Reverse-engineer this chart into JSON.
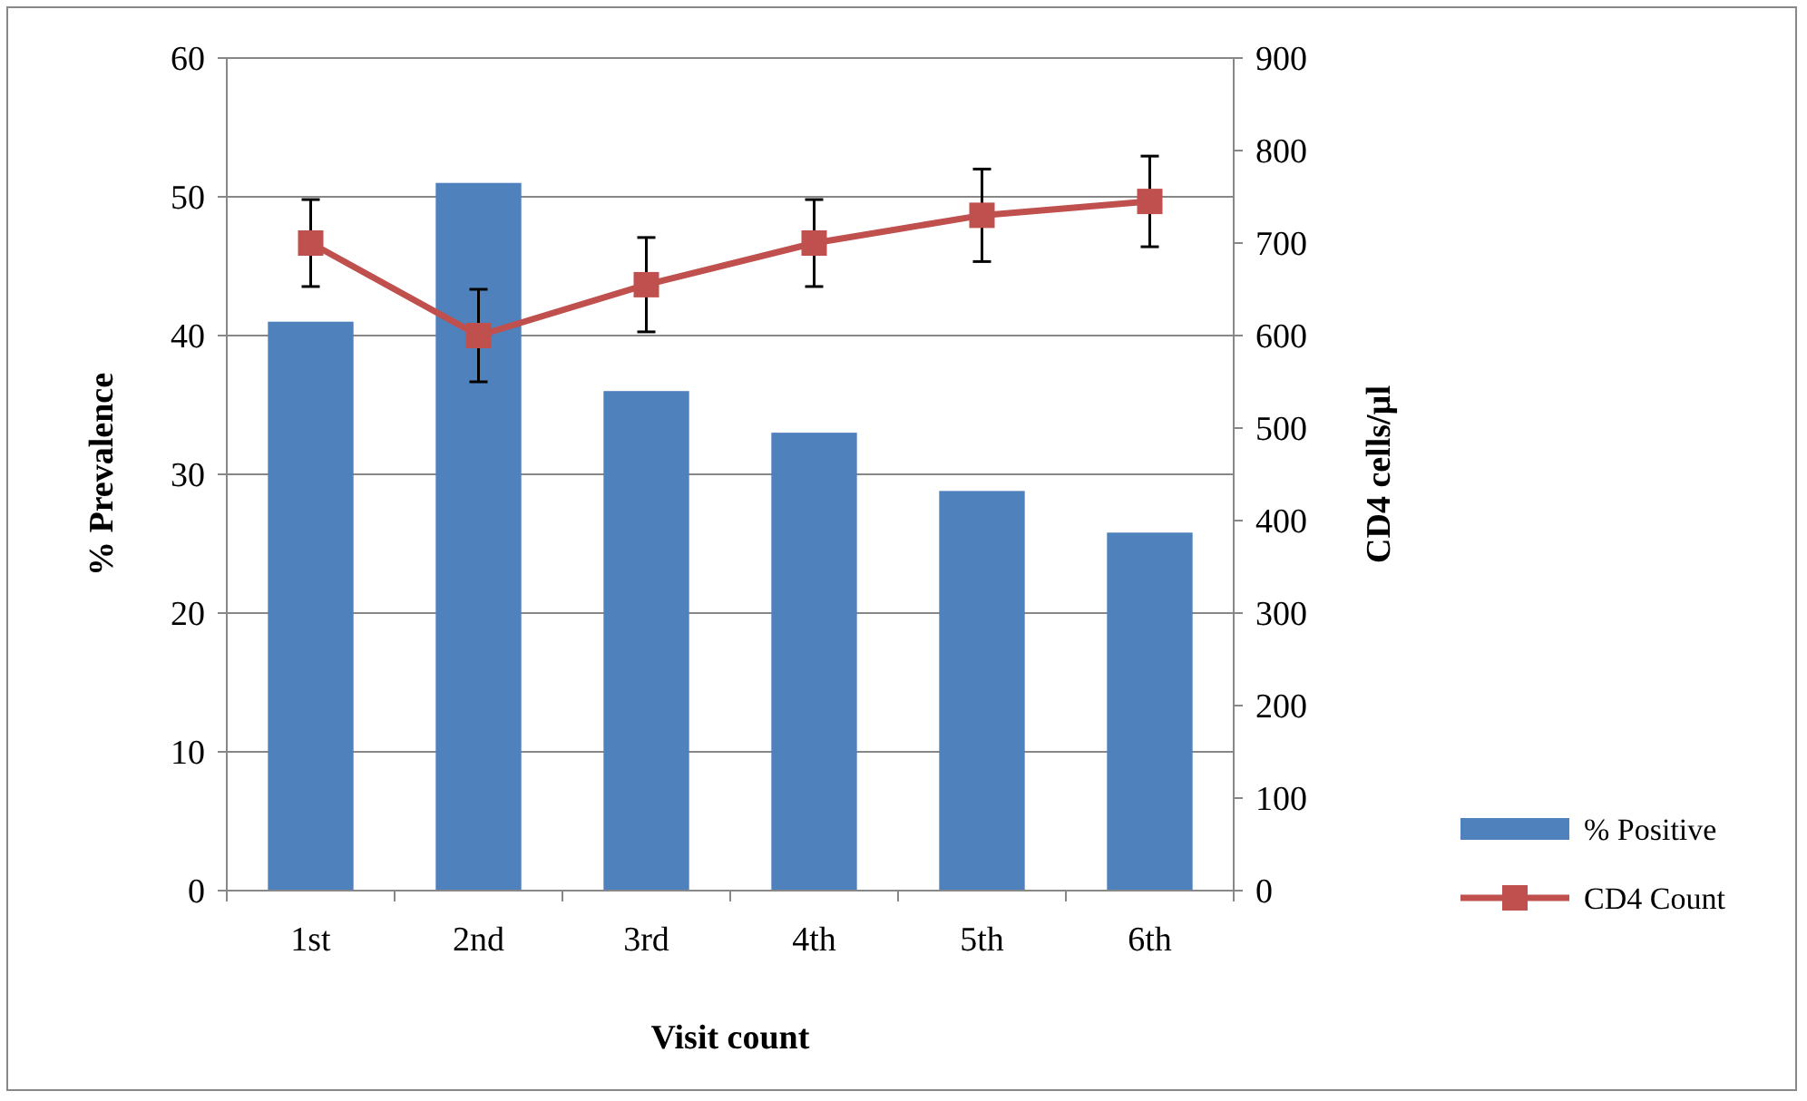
{
  "chart_data": {
    "type": "bar",
    "xlabel": "Visit count",
    "ylabel": "% Prevalence",
    "y2label": "CD4 cells/µl",
    "categories": [
      "1st",
      "2nd",
      "3rd",
      "4th",
      "5th",
      "6th"
    ],
    "series": [
      {
        "name": "% Positive",
        "color": "#4f81bd",
        "values": [
          41,
          51,
          36,
          33,
          28.8,
          25.8
        ]
      },
      {
        "name": "CD4 Count",
        "type": "line",
        "axis": "y2",
        "color": "#c0504d",
        "marker": "square",
        "values": [
          700,
          600,
          655,
          700,
          730,
          745
        ],
        "errors": [
          47,
          50,
          51,
          47,
          50,
          49
        ]
      }
    ],
    "ylim": [
      0,
      60
    ],
    "yticks": [
      0,
      10,
      20,
      30,
      40,
      50,
      60
    ],
    "y2lim": [
      0,
      900
    ],
    "y2ticks": [
      0,
      100,
      200,
      300,
      400,
      500,
      600,
      700,
      800,
      900
    ],
    "grid": "y",
    "legend": "bottom right"
  }
}
